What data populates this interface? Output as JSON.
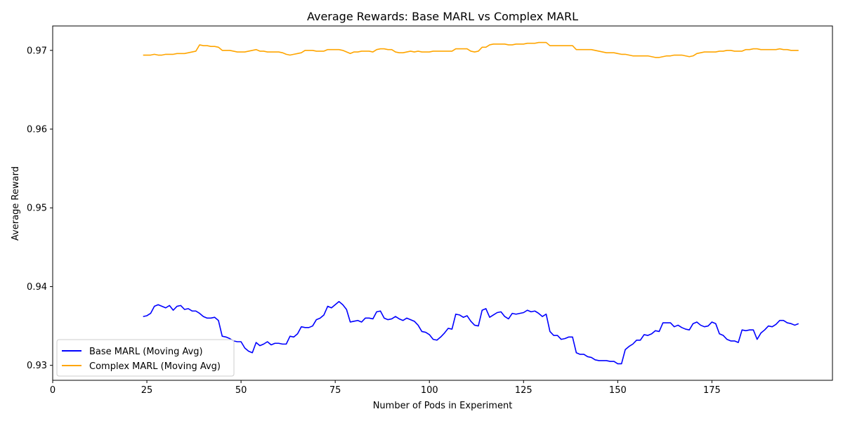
{
  "chart_data": {
    "type": "line",
    "title": "Average Rewards: Base MARL vs Complex MARL",
    "xlabel": "Number of Pods in Experiment",
    "ylabel": "Average Reward",
    "xlim": [
      0,
      207
    ],
    "ylim": [
      0.9281,
      0.9731
    ],
    "xticks": [
      0,
      25,
      50,
      75,
      100,
      125,
      150,
      175
    ],
    "yticks": [
      0.93,
      0.94,
      0.95,
      0.96,
      0.97
    ],
    "xtick_labels": [
      "0",
      "25",
      "50",
      "75",
      "100",
      "125",
      "150",
      "175"
    ],
    "ytick_labels": [
      "0.93",
      "0.94",
      "0.95",
      "0.96",
      "0.97"
    ],
    "grid": false,
    "legend_position": "lower-left",
    "series": [
      {
        "name": "Base MARL (Moving Avg)",
        "color": "#0000ff",
        "x": [
          24,
          25,
          26,
          27,
          28,
          29,
          30,
          31,
          32,
          33,
          34,
          35,
          36,
          37,
          38,
          39,
          40,
          41,
          42,
          43,
          44,
          45,
          46,
          47,
          48,
          49,
          50,
          51,
          52,
          53,
          54,
          55,
          56,
          57,
          58,
          59,
          60,
          61,
          62,
          63,
          64,
          65,
          66,
          67,
          68,
          69,
          70,
          71,
          72,
          73,
          74,
          75,
          76,
          77,
          78,
          79,
          80,
          81,
          82,
          83,
          84,
          85,
          86,
          87,
          88,
          89,
          90,
          91,
          92,
          93,
          94,
          95,
          96,
          97,
          98,
          99,
          100,
          101,
          102,
          103,
          104,
          105,
          106,
          107,
          108,
          109,
          110,
          111,
          112,
          113,
          114,
          115,
          116,
          117,
          118,
          119,
          120,
          121,
          122,
          123,
          124,
          125,
          126,
          127,
          128,
          129,
          130,
          131,
          132,
          133,
          134,
          135,
          136,
          137,
          138,
          139,
          140,
          141,
          142,
          143,
          144,
          145,
          146,
          147,
          148,
          149,
          150,
          151,
          152,
          153,
          154,
          155,
          156,
          157,
          158,
          159,
          160,
          161,
          162,
          163,
          164,
          165,
          166,
          167,
          168,
          169,
          170,
          171,
          172,
          173,
          174,
          175,
          176,
          177,
          178,
          179,
          180,
          181,
          182,
          183,
          184,
          185,
          186,
          187,
          188,
          189,
          190,
          191,
          192,
          193,
          194,
          195,
          196,
          197,
          198
        ],
        "y": [
          0.9362,
          0.9363,
          0.9366,
          0.9375,
          0.9377,
          0.9375,
          0.9373,
          0.9376,
          0.937,
          0.9375,
          0.9376,
          0.9371,
          0.9372,
          0.9369,
          0.9369,
          0.9366,
          0.9362,
          0.936,
          0.936,
          0.9361,
          0.9357,
          0.9337,
          0.9336,
          0.9334,
          0.9331,
          0.933,
          0.933,
          0.9322,
          0.9318,
          0.9316,
          0.9329,
          0.9325,
          0.9327,
          0.933,
          0.9326,
          0.9328,
          0.9328,
          0.9327,
          0.9327,
          0.9337,
          0.9336,
          0.934,
          0.9349,
          0.9348,
          0.9348,
          0.935,
          0.9358,
          0.936,
          0.9364,
          0.9375,
          0.9373,
          0.9377,
          0.9381,
          0.9377,
          0.9371,
          0.9355,
          0.9356,
          0.9357,
          0.9355,
          0.936,
          0.936,
          0.9359,
          0.9368,
          0.9369,
          0.936,
          0.9358,
          0.9359,
          0.9362,
          0.9359,
          0.9357,
          0.936,
          0.9358,
          0.9356,
          0.9351,
          0.9343,
          0.9342,
          0.9339,
          0.9333,
          0.9332,
          0.9336,
          0.9341,
          0.9347,
          0.9346,
          0.9365,
          0.9364,
          0.9361,
          0.9363,
          0.9356,
          0.9351,
          0.935,
          0.937,
          0.9372,
          0.9361,
          0.9364,
          0.9367,
          0.9368,
          0.9362,
          0.9359,
          0.9366,
          0.9365,
          0.9366,
          0.9367,
          0.937,
          0.9368,
          0.9369,
          0.9366,
          0.9362,
          0.9365,
          0.9343,
          0.9338,
          0.9338,
          0.9333,
          0.9334,
          0.9336,
          0.9336,
          0.9316,
          0.9314,
          0.9314,
          0.9311,
          0.931,
          0.9307,
          0.9306,
          0.9306,
          0.9306,
          0.9305,
          0.9305,
          0.9302,
          0.9302,
          0.932,
          0.9324,
          0.9327,
          0.9332,
          0.9332,
          0.9339,
          0.9338,
          0.934,
          0.9344,
          0.9343,
          0.9354,
          0.9354,
          0.9354,
          0.9349,
          0.9351,
          0.9348,
          0.9346,
          0.9345,
          0.9353,
          0.9355,
          0.9351,
          0.9349,
          0.935,
          0.9355,
          0.9353,
          0.934,
          0.9338,
          0.9333,
          0.9331,
          0.9331,
          0.9329,
          0.9345,
          0.9344,
          0.9345,
          0.9345,
          0.9333,
          0.9341,
          0.9345,
          0.935,
          0.9349,
          0.9352,
          0.9357,
          0.9357,
          0.9354,
          0.9353,
          0.9351,
          0.9353
        ]
      },
      {
        "name": "Complex MARL (Moving Avg)",
        "color": "#ffa500",
        "x": [
          24,
          25,
          26,
          27,
          28,
          29,
          30,
          31,
          32,
          33,
          34,
          35,
          36,
          37,
          38,
          39,
          40,
          41,
          42,
          43,
          44,
          45,
          46,
          47,
          48,
          49,
          50,
          51,
          52,
          53,
          54,
          55,
          56,
          57,
          58,
          59,
          60,
          61,
          62,
          63,
          64,
          65,
          66,
          67,
          68,
          69,
          70,
          71,
          72,
          73,
          74,
          75,
          76,
          77,
          78,
          79,
          80,
          81,
          82,
          83,
          84,
          85,
          86,
          87,
          88,
          89,
          90,
          91,
          92,
          93,
          94,
          95,
          96,
          97,
          98,
          99,
          100,
          101,
          102,
          103,
          104,
          105,
          106,
          107,
          108,
          109,
          110,
          111,
          112,
          113,
          114,
          115,
          116,
          117,
          118,
          119,
          120,
          121,
          122,
          123,
          124,
          125,
          126,
          127,
          128,
          129,
          130,
          131,
          132,
          133,
          134,
          135,
          136,
          137,
          138,
          139,
          140,
          141,
          142,
          143,
          144,
          145,
          146,
          147,
          148,
          149,
          150,
          151,
          152,
          153,
          154,
          155,
          156,
          157,
          158,
          159,
          160,
          161,
          162,
          163,
          164,
          165,
          166,
          167,
          168,
          169,
          170,
          171,
          172,
          173,
          174,
          175,
          176,
          177,
          178,
          179,
          180,
          181,
          182,
          183,
          184,
          185,
          186,
          187,
          188,
          189,
          190,
          191,
          192,
          193,
          194,
          195,
          196,
          197,
          198
        ],
        "y": [
          0.9694,
          0.9694,
          0.9694,
          0.9695,
          0.9694,
          0.9694,
          0.9695,
          0.9695,
          0.9695,
          0.9696,
          0.9696,
          0.9696,
          0.9697,
          0.9698,
          0.9699,
          0.9707,
          0.9706,
          0.9706,
          0.9705,
          0.9705,
          0.9704,
          0.97,
          0.97,
          0.97,
          0.9699,
          0.9698,
          0.9698,
          0.9698,
          0.9699,
          0.97,
          0.9701,
          0.9699,
          0.9699,
          0.9698,
          0.9698,
          0.9698,
          0.9698,
          0.9697,
          0.9695,
          0.9694,
          0.9695,
          0.9696,
          0.9697,
          0.97,
          0.97,
          0.97,
          0.9699,
          0.9699,
          0.9699,
          0.9701,
          0.9701,
          0.9701,
          0.9701,
          0.97,
          0.9698,
          0.9696,
          0.9698,
          0.9698,
          0.9699,
          0.9699,
          0.9699,
          0.9698,
          0.9701,
          0.9702,
          0.9702,
          0.9701,
          0.9701,
          0.9698,
          0.9697,
          0.9697,
          0.9698,
          0.9699,
          0.9698,
          0.9699,
          0.9698,
          0.9698,
          0.9698,
          0.9699,
          0.9699,
          0.9699,
          0.9699,
          0.9699,
          0.9699,
          0.9702,
          0.9702,
          0.9702,
          0.9702,
          0.9699,
          0.9698,
          0.9699,
          0.9704,
          0.9704,
          0.9707,
          0.9708,
          0.9708,
          0.9708,
          0.9708,
          0.9707,
          0.9707,
          0.9708,
          0.9708,
          0.9708,
          0.9709,
          0.9709,
          0.9709,
          0.971,
          0.971,
          0.971,
          0.9706,
          0.9706,
          0.9706,
          0.9706,
          0.9706,
          0.9706,
          0.9706,
          0.9701,
          0.9701,
          0.9701,
          0.9701,
          0.9701,
          0.97,
          0.9699,
          0.9698,
          0.9697,
          0.9697,
          0.9697,
          0.9696,
          0.9695,
          0.9695,
          0.9694,
          0.9693,
          0.9693,
          0.9693,
          0.9693,
          0.9693,
          0.9692,
          0.9691,
          0.9691,
          0.9692,
          0.9693,
          0.9693,
          0.9694,
          0.9694,
          0.9694,
          0.9693,
          0.9692,
          0.9693,
          0.9696,
          0.9697,
          0.9698,
          0.9698,
          0.9698,
          0.9698,
          0.9699,
          0.9699,
          0.97,
          0.97,
          0.9699,
          0.9699,
          0.9699,
          0.9701,
          0.9701,
          0.9702,
          0.9702,
          0.9701,
          0.9701,
          0.9701,
          0.9701,
          0.9701,
          0.9702,
          0.9701,
          0.9701,
          0.97,
          0.97,
          0.97
        ]
      }
    ]
  }
}
